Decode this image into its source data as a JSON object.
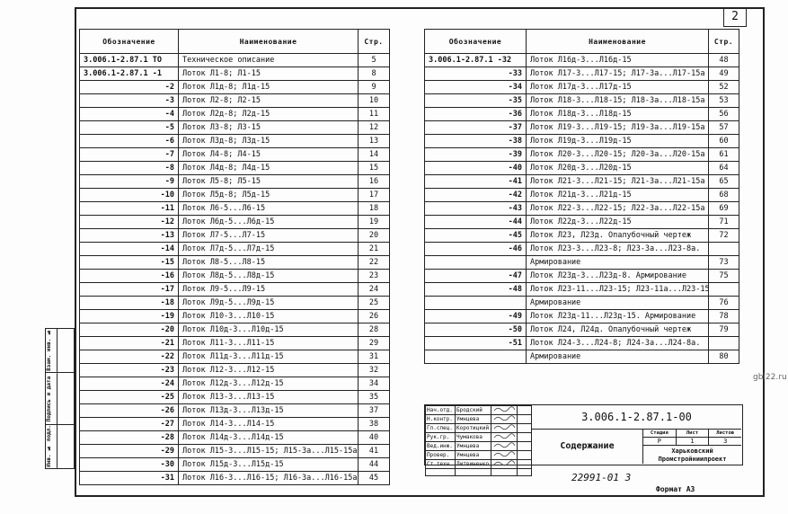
{
  "sheet_number": "2",
  "watermark": "gbi22.ru",
  "headers": {
    "designation": "Обозначение",
    "name": "Наименование",
    "page": "Стр."
  },
  "left_rows": [
    [
      "3.006.1-2.87.1 ТО",
      "Техническое описание",
      "5"
    ],
    [
      "3.006.1-2.87.1 -1",
      "Лоток Л1-8; Л1-15",
      "8"
    ],
    [
      "-2",
      "Лоток Л1д-8; Л1д-15",
      "9"
    ],
    [
      "-3",
      "Лоток Л2-8; Л2-15",
      "10"
    ],
    [
      "-4",
      "Лоток Л2д-8; Л2д-15",
      "11"
    ],
    [
      "-5",
      "Лоток Л3-8; Л3-15",
      "12"
    ],
    [
      "-6",
      "Лоток Л3д-8; Л3д-15",
      "13"
    ],
    [
      "-7",
      "Лоток Л4-8; Л4-15",
      "14"
    ],
    [
      "-8",
      "Лоток Л4д-8; Л4д-15",
      "15"
    ],
    [
      "-9",
      "Лоток Л5-8; Л5-15",
      "16"
    ],
    [
      "-10",
      "Лоток Л5д-8; Л5д-15",
      "17"
    ],
    [
      "-11",
      "Лоток Л6-5...Л6-15",
      "18"
    ],
    [
      "-12",
      "Лоток Л6д-5...Л6д-15",
      "19"
    ],
    [
      "-13",
      "Лоток Л7-5...Л7-15",
      "20"
    ],
    [
      "-14",
      "Лоток Л7д-5...Л7д-15",
      "21"
    ],
    [
      "-15",
      "Лоток Л8-5...Л8-15",
      "22"
    ],
    [
      "-16",
      "Лоток Л8д-5...Л8д-15",
      "23"
    ],
    [
      "-17",
      "Лоток Л9-5...Л9-15",
      "24"
    ],
    [
      "-18",
      "Лоток Л9д-5...Л9д-15",
      "25"
    ],
    [
      "-19",
      "Лоток Л10-3...Л10-15",
      "26"
    ],
    [
      "-20",
      "Лоток Л10д-3...Л10д-15",
      "28"
    ],
    [
      "-21",
      "Лоток Л11-3...Л11-15",
      "29"
    ],
    [
      "-22",
      "Лоток Л11д-3...Л11д-15",
      "31"
    ],
    [
      "-23",
      "Лоток Л12-3...Л12-15",
      "32"
    ],
    [
      "-24",
      "Лоток Л12д-3...Л12д-15",
      "34"
    ],
    [
      "-25",
      "Лоток Л13-3...Л13-15",
      "35"
    ],
    [
      "-26",
      "Лоток Л13д-3...Л13д-15",
      "37"
    ],
    [
      "-27",
      "Лоток Л14-3...Л14-15",
      "38"
    ],
    [
      "-28",
      "Лоток Л14д-3...Л14д-15",
      "40"
    ],
    [
      "-29",
      "Лоток Л15-3...Л15-15; Л15-3а...Л15-15а",
      "41"
    ],
    [
      "-30",
      "Лоток Л15д-3...Л15д-15",
      "44"
    ],
    [
      "-31",
      "Лоток Л16-3...Л16-15; Л16-3а...Л16-15а",
      "45"
    ]
  ],
  "right_rows": [
    [
      "3.006.1-2.87.1 -32",
      "Лоток Л16д-3...Л16д-15",
      "48"
    ],
    [
      "-33",
      "Лоток Л17-3...Л17-15; Л17-3а...Л17-15а",
      "49"
    ],
    [
      "-34",
      "Лоток Л17д-3...Л17д-15",
      "52"
    ],
    [
      "-35",
      "Лоток Л18-3...Л18-15; Л18-3а...Л18-15а",
      "53"
    ],
    [
      "-36",
      "Лоток Л18д-3...Л18д-15",
      "56"
    ],
    [
      "-37",
      "Лоток Л19-3...Л19-15; Л19-3а...Л19-15а",
      "57"
    ],
    [
      "-38",
      "Лоток Л19д-3...Л19д-15",
      "60"
    ],
    [
      "-39",
      "Лоток Л20-3...Л20-15; Л20-3а...Л20-15а",
      "61"
    ],
    [
      "-40",
      "Лоток Л20д-3...Л20д-15",
      "64"
    ],
    [
      "-41",
      "Лоток Л21-3...Л21-15; Л21-3а...Л21-15а",
      "65"
    ],
    [
      "-42",
      "Лоток Л21д-3...Л21д-15",
      "68"
    ],
    [
      "-43",
      "Лоток Л22-3...Л22-15; Л22-3а...Л22-15а",
      "69"
    ],
    [
      "-44",
      "Лоток Л22д-3...Л22д-15",
      "71"
    ],
    [
      "-45",
      "Лоток Л23, Л23д. Опалубочный чертеж",
      "72"
    ],
    [
      "-46",
      "Лоток Л23-3...Л23-8; Л23-3а...Л23-8а.",
      ""
    ],
    [
      "",
      "Армирование",
      "73"
    ],
    [
      "-47",
      "Лоток Л23д-3...Л23д-8. Армирование",
      "75"
    ],
    [
      "-48",
      "Лоток Л23-11...Л23-15; Л23-11а...Л23-15а",
      ""
    ],
    [
      "",
      "Армирование",
      "76"
    ],
    [
      "-49",
      "Лоток Л23д-11...Л23д-15. Армирование",
      "78"
    ],
    [
      "-50",
      "Лоток Л24, Л24д. Опалубочный чертеж",
      "79"
    ],
    [
      "-51",
      "Лоток Л24-3...Л24-8; Л24-3а...Л24-8а.",
      ""
    ],
    [
      "",
      "Армирование",
      "80"
    ]
  ],
  "side_stamp": [
    "Взам. инв. №",
    "Подпись и дата",
    "Инв. № подл."
  ],
  "title_block": {
    "signatures": [
      [
        "Нач.отд.",
        "Бродский"
      ],
      [
        "Н.контр.",
        "Умнцева"
      ],
      [
        "Гл.спец.",
        "Коротицкий"
      ],
      [
        "Рук.гр.",
        "Чумакова"
      ],
      [
        "Вед.инж.",
        "Умнцева"
      ],
      [
        "Провер.",
        "Умнцева"
      ],
      [
        "Ст.техн.",
        "Литвиненко"
      ],
      [
        "",
        ""
      ]
    ],
    "code": "3.006.1-2.87.1-00",
    "title": "Содержание",
    "stage_label": "Стадия",
    "sheet_label": "Лист",
    "sheets_label": "Листов",
    "stage": "Р",
    "sheet": "1",
    "sheets": "3",
    "organization": "Харьковский Промстройниипроект"
  },
  "inventory": "22991-01   3",
  "format": "Формат А3"
}
